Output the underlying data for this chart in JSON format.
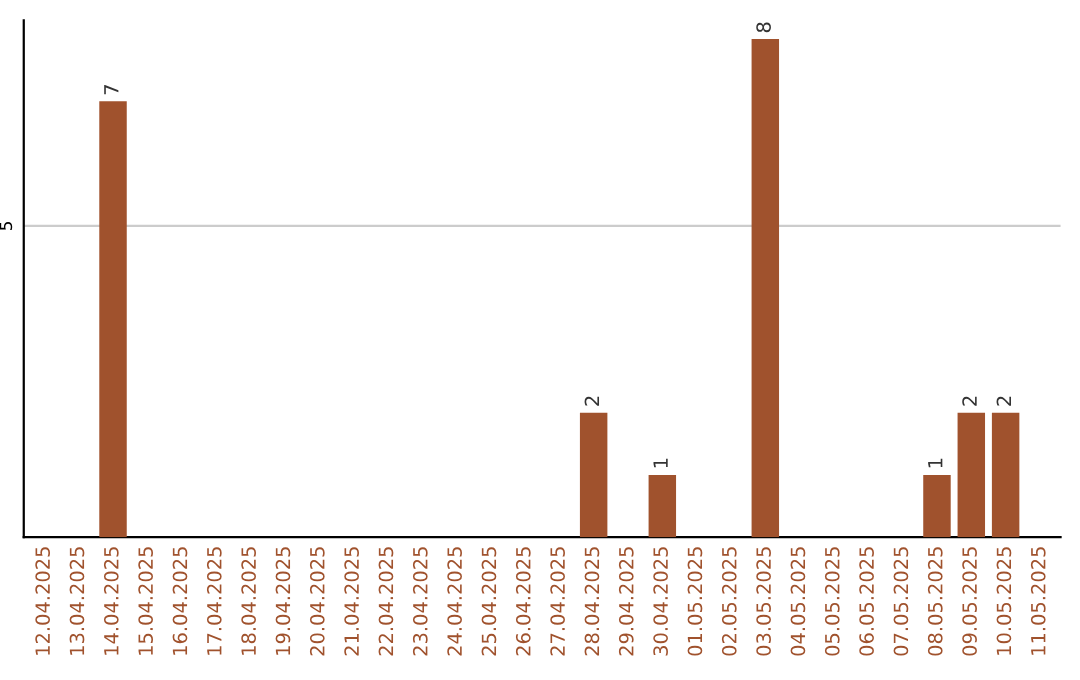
{
  "chart_data": {
    "type": "bar",
    "categories": [
      "12.04.2025",
      "13.04.2025",
      "14.04.2025",
      "15.04.2025",
      "16.04.2025",
      "17.04.2025",
      "18.04.2025",
      "19.04.2025",
      "20.04.2025",
      "21.04.2025",
      "22.04.2025",
      "23.04.2025",
      "24.04.2025",
      "25.04.2025",
      "26.04.2025",
      "27.04.2025",
      "28.04.2025",
      "29.04.2025",
      "30.04.2025",
      "01.05.2025",
      "02.05.2025",
      "03.05.2025",
      "04.05.2025",
      "05.05.2025",
      "06.05.2025",
      "07.05.2025",
      "08.05.2025",
      "09.05.2025",
      "10.05.2025",
      "11.05.2025"
    ],
    "values": [
      0,
      0,
      7,
      0,
      0,
      0,
      0,
      0,
      0,
      0,
      0,
      0,
      0,
      0,
      0,
      0,
      2,
      0,
      1,
      0,
      0,
      8,
      0,
      0,
      0,
      0,
      1,
      2,
      2,
      0
    ],
    "value_labels": [
      null,
      null,
      "7",
      null,
      null,
      null,
      null,
      null,
      null,
      null,
      null,
      null,
      null,
      null,
      null,
      null,
      "2",
      null,
      "1",
      null,
      null,
      "8",
      null,
      null,
      null,
      null,
      "1",
      "2",
      "2",
      null
    ],
    "color": "#a0522d",
    "ylim": [
      0,
      8.3
    ],
    "yticks": [
      5
    ],
    "grid": "y"
  }
}
